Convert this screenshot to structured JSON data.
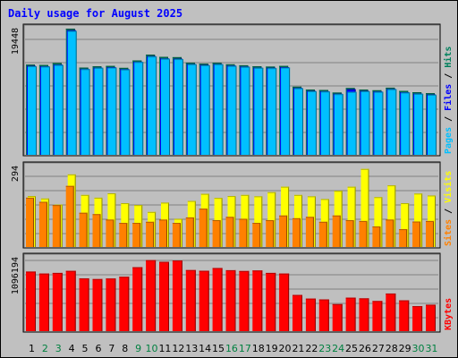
{
  "chart_data": {
    "type": "bar",
    "title": "Daily usage for August 2025",
    "days": [
      "1",
      "2",
      "3",
      "4",
      "5",
      "6",
      "7",
      "8",
      "9",
      "10",
      "11",
      "12",
      "13",
      "14",
      "15",
      "16",
      "17",
      "18",
      "19",
      "20",
      "21",
      "22",
      "23",
      "24",
      "25",
      "26",
      "27",
      "28",
      "29",
      "30",
      "31"
    ],
    "weekend_days": [
      "2",
      "3",
      "9",
      "10",
      "16",
      "17",
      "23",
      "24",
      "30",
      "31"
    ],
    "colors": {
      "background": "#c0c0c0",
      "plot_bg": "#bfbfbf",
      "hits": "#00805c",
      "files": "#0000ff",
      "pages": "#00c0ff",
      "visits": "#ffff00",
      "sites": "#ff8000",
      "kbytes": "#ff0000",
      "weekday_label": "#000000",
      "weekend_label": "#008040",
      "title": "#0000ff"
    },
    "panels": [
      {
        "id": "top",
        "ytick": "19448",
        "ymax": 19448,
        "legend": [
          {
            "label": "Pages",
            "color": "#00c0ff"
          },
          {
            "label": "Files",
            "color": "#0000ff"
          },
          {
            "label": "Hits",
            "color": "#00805c"
          }
        ],
        "series": [
          {
            "name": "Hits",
            "values": [
              13900,
              13850,
              14150,
              19448,
              13450,
              13650,
              13700,
              13400,
              14550,
              15450,
              15100,
              15050,
              14200,
              14050,
              14200,
              13950,
              13800,
              13650,
              13600,
              13700,
              10500,
              10050,
              10000,
              9600,
              10300,
              10050,
              9950,
              10350,
              9850,
              9650,
              9500
            ]
          },
          {
            "name": "Files",
            "values": [
              13700,
              13650,
              13900,
              19200,
              13250,
              13450,
              13500,
              13200,
              14350,
              15200,
              14850,
              14800,
              14000,
              13850,
              14000,
              13750,
              13600,
              13450,
              13400,
              13500,
              10300,
              9850,
              9800,
              9400,
              10100,
              9850,
              9750,
              10150,
              9650,
              9450,
              9300
            ]
          },
          {
            "name": "Pages",
            "values": [
              13650,
              13600,
              13850,
              19100,
              13200,
              13400,
              13450,
              13150,
              14300,
              15150,
              14800,
              14750,
              13950,
              13800,
              13950,
              13700,
              13550,
              13400,
              13350,
              13450,
              10250,
              9800,
              9750,
              9350,
              9700,
              9800,
              9700,
              10100,
              9600,
              9400,
              9250
            ]
          }
        ]
      },
      {
        "id": "middle",
        "ytick": "294",
        "ymax": 294,
        "legend": [
          {
            "label": "Sites",
            "color": "#ff8000"
          },
          {
            "label": "Visits",
            "color": "#ffff00"
          }
        ],
        "series": [
          {
            "name": "Visits",
            "values": [
              186,
              177,
              155,
              265,
              190,
              180,
              196,
              160,
              153,
              128,
              162,
              103,
              168,
              194,
              179,
              186,
              190,
              185,
              200,
              220,
              190,
              185,
              175,
              205,
              220,
              285,
              182,
              225,
              160,
              195,
              188
            ]
          },
          {
            "name": "Sites",
            "values": [
              180,
              165,
              153,
              223,
              125,
              120,
              100,
              88,
              88,
              92,
              100,
              88,
              108,
              140,
              98,
              110,
              103,
              88,
              98,
              115,
              105,
              110,
              92,
              115,
              98,
              95,
              75,
              100,
              65,
              93,
              95
            ]
          }
        ]
      },
      {
        "id": "bottom",
        "ytick": "1096194",
        "ymax": 1096194,
        "legend": [
          {
            "label": "KBytes",
            "color": "#ff0000"
          }
        ],
        "series": [
          {
            "name": "KBytes",
            "values": [
              890000,
              860000,
              870000,
              900000,
              788000,
              778000,
              786000,
              812000,
              955000,
              1060000,
              1036000,
              1055000,
              912000,
              902000,
              943000,
              910000,
              898000,
              906000,
              870000,
              860000,
              541000,
              486000,
              474000,
              403000,
              500000,
              490000,
              450000,
              562000,
              460000,
              373000,
              395000
            ]
          }
        ]
      }
    ]
  }
}
